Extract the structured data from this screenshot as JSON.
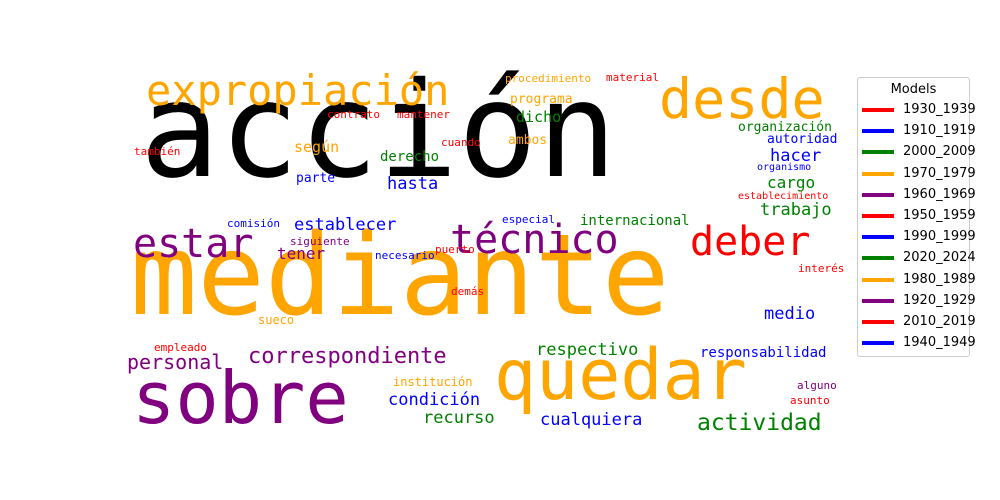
{
  "chart_data": {
    "type": "wordcloud",
    "legend": {
      "title": "Models",
      "placement": "right",
      "entries": [
        {
          "label": "1930_1939",
          "color": "#ff0000"
        },
        {
          "label": "1910_1919",
          "color": "#0000ff"
        },
        {
          "label": "2000_2009",
          "color": "#008000"
        },
        {
          "label": "1970_1979",
          "color": "#ffa500"
        },
        {
          "label": "1960_1969",
          "color": "#800080"
        },
        {
          "label": "1950_1959",
          "color": "#ff0000"
        },
        {
          "label": "1990_1999",
          "color": "#0000ff"
        },
        {
          "label": "2020_2024",
          "color": "#008000"
        },
        {
          "label": "1980_1989",
          "color": "#ffa500"
        },
        {
          "label": "1920_1929",
          "color": "#800080"
        },
        {
          "label": "2010_2019",
          "color": "#ff0000"
        },
        {
          "label": "1940_1949",
          "color": "#0000ff"
        }
      ]
    },
    "words": [
      {
        "text": "acción",
        "color": "#000000"
      },
      {
        "text": "mediante",
        "color": "#ffa500"
      },
      {
        "text": "sobre",
        "color": "#800080"
      },
      {
        "text": "quedar",
        "color": "#ffa500"
      },
      {
        "text": "expropiación",
        "color": "#ffa500"
      },
      {
        "text": "desde",
        "color": "#ffa500"
      },
      {
        "text": "técnico",
        "color": "#800080"
      },
      {
        "text": "deber",
        "color": "#ff0000"
      },
      {
        "text": "estar",
        "color": "#800080"
      },
      {
        "text": "correspondiente",
        "color": "#800080"
      },
      {
        "text": "personal",
        "color": "#800080"
      },
      {
        "text": "actividad",
        "color": "#008000"
      },
      {
        "text": "establecer",
        "color": "#0000ff"
      },
      {
        "text": "respectivo",
        "color": "#008000"
      },
      {
        "text": "cualquiera",
        "color": "#0000ff"
      },
      {
        "text": "trabajo",
        "color": "#008000"
      },
      {
        "text": "hacer",
        "color": "#0000ff"
      },
      {
        "text": "hasta",
        "color": "#0000ff"
      },
      {
        "text": "medio",
        "color": "#0000ff"
      },
      {
        "text": "condición",
        "color": "#0000ff"
      },
      {
        "text": "recurso",
        "color": "#008000"
      },
      {
        "text": "tener",
        "color": "#800080"
      },
      {
        "text": "cargo",
        "color": "#008000"
      },
      {
        "text": "responsabilidad",
        "color": "#0000ff"
      },
      {
        "text": "según",
        "color": "#ffa500"
      },
      {
        "text": "dicho",
        "color": "#008000"
      },
      {
        "text": "internacional",
        "color": "#008000"
      },
      {
        "text": "derecho",
        "color": "#008000"
      },
      {
        "text": "organización",
        "color": "#008000"
      },
      {
        "text": "autoridad",
        "color": "#0000ff"
      },
      {
        "text": "programa",
        "color": "#ffa500"
      },
      {
        "text": "ambos",
        "color": "#ffa500"
      },
      {
        "text": "parte",
        "color": "#0000ff"
      },
      {
        "text": "sueco",
        "color": "#ffa500"
      },
      {
        "text": "institución",
        "color": "#ffa500"
      },
      {
        "text": "procedimiento",
        "color": "#ffa500"
      },
      {
        "text": "material",
        "color": "#ff0000"
      },
      {
        "text": "contrato",
        "color": "#ff0000"
      },
      {
        "text": "mantener",
        "color": "#ff0000"
      },
      {
        "text": "cuando",
        "color": "#ff0000"
      },
      {
        "text": "también",
        "color": "#ff0000"
      },
      {
        "text": "organismo",
        "color": "#0000ff"
      },
      {
        "text": "establecimiento",
        "color": "#ff0000"
      },
      {
        "text": "comisión",
        "color": "#0000ff"
      },
      {
        "text": "especial",
        "color": "#0000ff"
      },
      {
        "text": "siguiente",
        "color": "#800080"
      },
      {
        "text": "necesario",
        "color": "#0000ff"
      },
      {
        "text": "puerto",
        "color": "#ff0000"
      },
      {
        "text": "demás",
        "color": "#ff0000"
      },
      {
        "text": "interés",
        "color": "#ff0000"
      },
      {
        "text": "empleado",
        "color": "#ff0000"
      },
      {
        "text": "alguno",
        "color": "#800080"
      },
      {
        "text": "asunto",
        "color": "#ff0000"
      }
    ]
  }
}
